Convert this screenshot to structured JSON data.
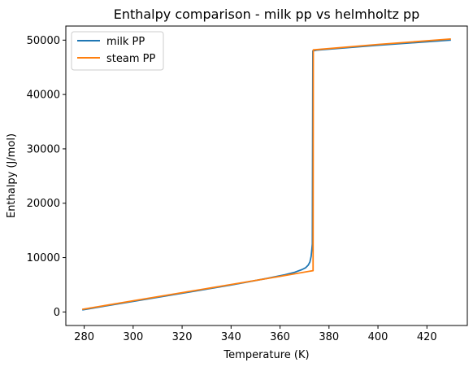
{
  "chart_data": {
    "type": "line",
    "title": "Enthalpy comparison - milk pp vs helmholtz pp",
    "xlabel": "Temperature (K)",
    "ylabel": "Enthalpy (J/mol)",
    "xlim": [
      272.5,
      436.5
    ],
    "ylim": [
      -2490,
      52590
    ],
    "xticks": [
      280,
      300,
      320,
      340,
      360,
      380,
      400,
      420
    ],
    "yticks": [
      0,
      10000,
      20000,
      30000,
      40000,
      50000
    ],
    "grid": false,
    "legend": "top-left",
    "series": [
      {
        "name": "milk PP",
        "color": "#1f77b4",
        "x": [
          279.5,
          300,
          320,
          340,
          355,
          362,
          366,
          369,
          370.5,
          371.5,
          372.2,
          372.7,
          373.0,
          373.2,
          373.4,
          375,
          400,
          429.5
        ],
        "y": [
          400,
          1950,
          3450,
          4950,
          6200,
          6850,
          7300,
          7800,
          8150,
          8600,
          9200,
          10200,
          11500,
          12500,
          48000,
          48150,
          49050,
          50000
        ]
      },
      {
        "name": "steam PP",
        "color": "#ff7f0e",
        "x": [
          279.5,
          300,
          320,
          340,
          360,
          373.5,
          373.6,
          400,
          429.5
        ],
        "y": [
          500,
          2050,
          3550,
          5050,
          6550,
          7600,
          48200,
          49200,
          50200
        ]
      }
    ]
  }
}
